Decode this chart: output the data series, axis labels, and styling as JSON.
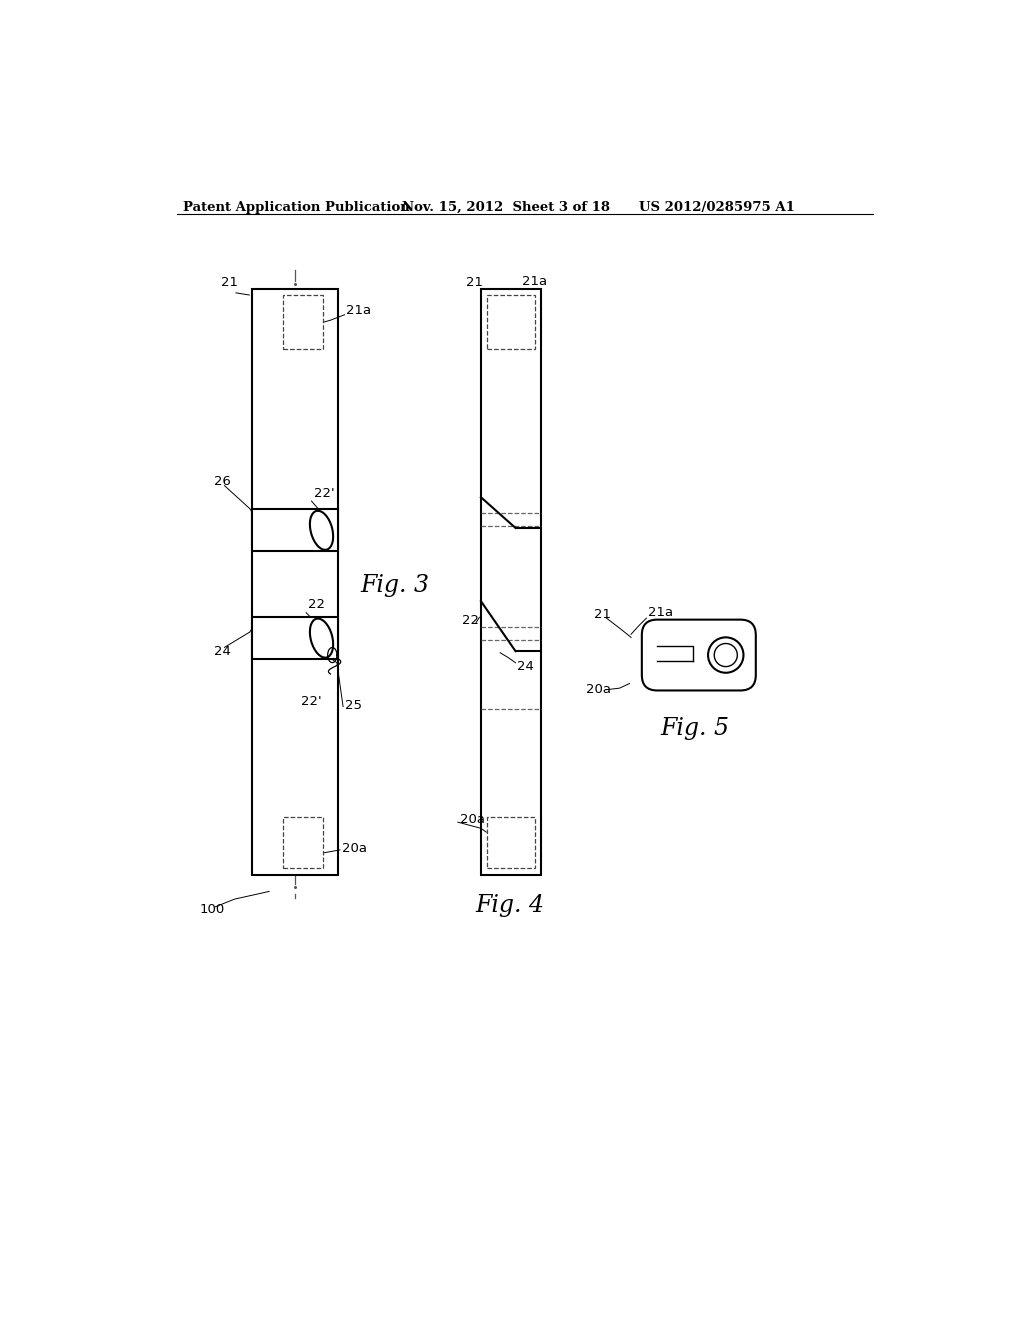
{
  "bg_color": "#ffffff",
  "line_color": "#000000",
  "header_left": "Patent Application Publication",
  "header_mid": "Nov. 15, 2012  Sheet 3 of 18",
  "header_right": "US 2012/0285975 A1",
  "fig3_label": "Fig. 3",
  "fig4_label": "Fig. 4",
  "fig5_label": "Fig. 5"
}
